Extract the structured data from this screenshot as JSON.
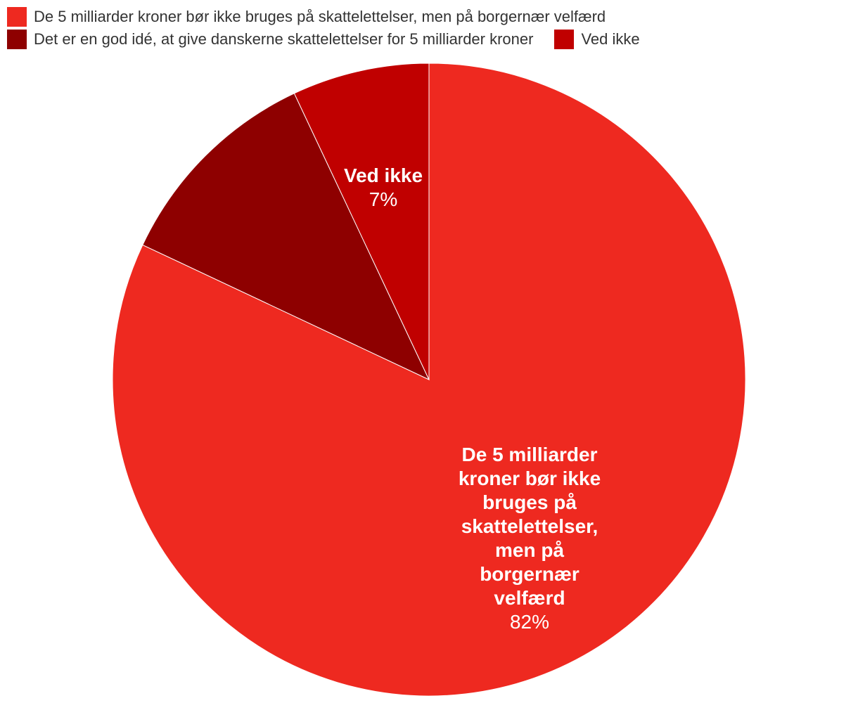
{
  "chart_data": {
    "type": "pie",
    "series": [
      {
        "label": "De 5 milliarder kroner bør ikke bruges på skattelettelser, men på borgernær velfærd",
        "value": 82,
        "value_label": "82%",
        "color": "#ee2920"
      },
      {
        "label": "Det er en god idé, at give danskerne skattelettelser for 5 milliarder kroner",
        "value": 11,
        "value_label": "",
        "color": "#8e0000"
      },
      {
        "label": "Ved ikke",
        "value": 7,
        "value_label": "7%",
        "color": "#c00000"
      }
    ]
  },
  "legend": {
    "items": [
      {
        "label": "De 5 milliarder kroner bør ikke bruges på skattelettelser, men på borgernær velfærd",
        "color": "#ee2920"
      },
      {
        "label": "Det er en god idé, at give danskerne skattelettelser for 5 milliarder kroner",
        "color": "#8e0000"
      },
      {
        "label": "Ved ikke",
        "color": "#c00000"
      }
    ]
  },
  "slice_labels": {
    "first": {
      "name_lines": [
        "De 5 milliarder",
        "kroner bør ikke",
        "bruges på",
        "skattelettelser,",
        "men på",
        "borgernær",
        "velfærd"
      ],
      "value": "82%"
    },
    "third": {
      "name_lines": [
        "Ved ikke"
      ],
      "value": "7%"
    }
  }
}
